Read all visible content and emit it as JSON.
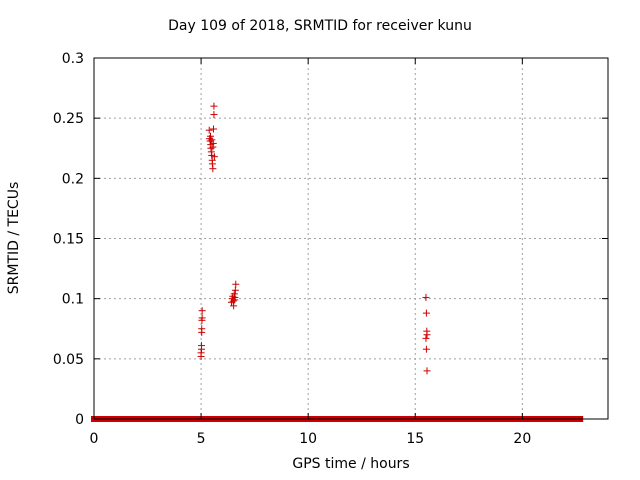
{
  "chart_data": {
    "type": "scatter",
    "title": "Day 109 of 2018, SRMTID for receiver kunu",
    "xlabel": "GPS time / hours",
    "ylabel": "SRMTID / TECUs",
    "xlim": [
      0,
      24
    ],
    "ylim": [
      0,
      0.3
    ],
    "xticks": [
      0,
      5,
      10,
      15,
      20
    ],
    "yticks": [
      0,
      0.05,
      0.1,
      0.15,
      0.2,
      0.25,
      0.3
    ],
    "ytick_labels": [
      "0",
      "0.05",
      "0.1",
      "0.15",
      "0.2",
      "0.25",
      "0.3"
    ],
    "grid": true,
    "marker": "+",
    "color": "#cc0000",
    "series": [
      {
        "values_note": "",
        "points": [
          [
            5.0,
            0.052
          ],
          [
            5.0,
            0.055
          ],
          [
            5.02,
            0.058
          ],
          [
            5.02,
            0.061
          ],
          [
            5.03,
            0.072
          ],
          [
            5.03,
            0.075
          ],
          [
            5.04,
            0.082
          ],
          [
            5.05,
            0.084
          ],
          [
            5.05,
            0.09
          ],
          [
            5.38,
            0.24
          ],
          [
            5.4,
            0.233
          ],
          [
            5.42,
            0.231
          ],
          [
            5.45,
            0.228
          ],
          [
            5.46,
            0.225
          ],
          [
            5.48,
            0.222
          ],
          [
            5.5,
            0.232
          ],
          [
            5.5,
            0.219
          ],
          [
            5.52,
            0.215
          ],
          [
            5.53,
            0.212
          ],
          [
            5.55,
            0.208
          ],
          [
            5.55,
            0.226
          ],
          [
            5.57,
            0.229
          ],
          [
            5.58,
            0.241
          ],
          [
            5.6,
            0.253
          ],
          [
            5.6,
            0.26
          ],
          [
            5.62,
            0.218
          ],
          [
            5.44,
            0.235
          ],
          [
            6.42,
            0.097
          ],
          [
            6.45,
            0.1
          ],
          [
            6.48,
            0.102
          ],
          [
            6.5,
            0.098
          ],
          [
            6.52,
            0.094
          ],
          [
            6.55,
            0.104
          ],
          [
            6.57,
            0.099
          ],
          [
            6.6,
            0.107
          ],
          [
            6.62,
            0.112
          ],
          [
            6.58,
            0.101
          ],
          [
            15.5,
            0.101
          ],
          [
            15.52,
            0.088
          ],
          [
            15.54,
            0.073
          ],
          [
            15.55,
            0.07
          ],
          [
            15.5,
            0.067
          ],
          [
            15.52,
            0.058
          ],
          [
            15.55,
            0.04
          ]
        ],
        "zero_segments": [
          [
            0.0,
            4.98
          ],
          [
            5.15,
            5.45
          ],
          [
            5.7,
            6.45
          ],
          [
            6.65,
            15.45
          ],
          [
            15.65,
            17.25
          ],
          [
            17.35,
            22.7
          ]
        ]
      }
    ]
  }
}
